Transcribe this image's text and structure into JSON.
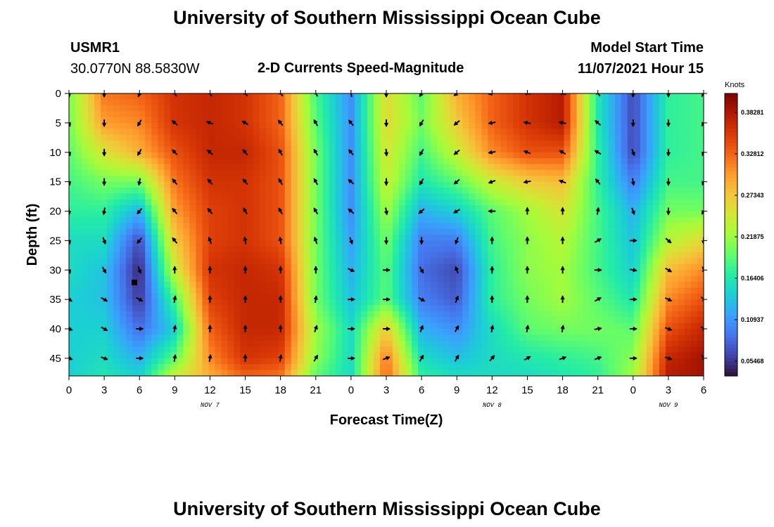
{
  "header": {
    "title": "University of Southern Mississippi Ocean Cube",
    "station_id": "USMR1",
    "coords": "30.0770N  88.5830W",
    "subtitle": "2-D Currents Speed-Magnitude",
    "model_start_label": "Model Start Time",
    "model_start_value": "11/07/2021 Hour 15"
  },
  "footer": {
    "title": "University of Southern Mississippi Ocean Cube"
  },
  "chart_data": {
    "type": "heatmap",
    "title": "2-D Currents Speed-Magnitude",
    "xlabel": "Forecast Time(Z)",
    "ylabel": "Depth (ft)",
    "x_ticks": [
      "0",
      "3",
      "6",
      "9",
      "12",
      "15",
      "18",
      "21",
      "0",
      "3",
      "6",
      "9",
      "12",
      "15",
      "18",
      "21",
      "0",
      "3",
      "6"
    ],
    "date_labels": [
      {
        "text": "NOV 7",
        "tick_index": 4
      },
      {
        "text": "NOV 8",
        "tick_index": 12
      },
      {
        "text": "NOV 9",
        "tick_index": 17
      }
    ],
    "y_ticks": [
      0,
      5,
      10,
      15,
      20,
      25,
      30,
      35,
      40,
      45
    ],
    "ylim": [
      0,
      48
    ],
    "xlim": [
      0,
      54
    ],
    "colorbar": {
      "label": "Knots",
      "ticks": [
        "0.38281",
        "0.32812",
        "0.27343",
        "0.21875",
        "0.16406",
        "0.10937",
        "0.05468"
      ],
      "vmin": 0.03,
      "vmax": 0.41,
      "colors": [
        "#30123b",
        "#4145ab",
        "#4675ed",
        "#39a2fc",
        "#1bcfd4",
        "#24eca6",
        "#61fc6c",
        "#a4fc3b",
        "#d1e834",
        "#f3c63a",
        "#fe9b2d",
        "#f36315",
        "#d93806",
        "#b11901",
        "#7a0403"
      ]
    },
    "speed_grid": {
      "depths": [
        0,
        5,
        10,
        15,
        20,
        25,
        30,
        35,
        40,
        45,
        48
      ],
      "hours": [
        0,
        3,
        6,
        9,
        12,
        15,
        18,
        21,
        24,
        27,
        30,
        33,
        36,
        39,
        42,
        45,
        48,
        51,
        54
      ],
      "values": [
        [
          0.2,
          0.32,
          0.33,
          0.36,
          0.37,
          0.36,
          0.33,
          0.18,
          0.1,
          0.26,
          0.19,
          0.29,
          0.33,
          0.36,
          0.38,
          0.16,
          0.06,
          0.17,
          0.18
        ],
        [
          0.2,
          0.3,
          0.31,
          0.36,
          0.37,
          0.36,
          0.33,
          0.19,
          0.1,
          0.26,
          0.2,
          0.27,
          0.33,
          0.36,
          0.38,
          0.16,
          0.06,
          0.17,
          0.18
        ],
        [
          0.19,
          0.25,
          0.29,
          0.34,
          0.37,
          0.37,
          0.34,
          0.2,
          0.1,
          0.25,
          0.18,
          0.24,
          0.31,
          0.34,
          0.34,
          0.17,
          0.06,
          0.17,
          0.18
        ],
        [
          0.18,
          0.2,
          0.2,
          0.32,
          0.36,
          0.36,
          0.34,
          0.2,
          0.1,
          0.24,
          0.16,
          0.19,
          0.24,
          0.27,
          0.28,
          0.17,
          0.09,
          0.18,
          0.18
        ],
        [
          0.17,
          0.17,
          0.12,
          0.3,
          0.35,
          0.36,
          0.34,
          0.2,
          0.1,
          0.22,
          0.12,
          0.14,
          0.19,
          0.22,
          0.25,
          0.18,
          0.12,
          0.2,
          0.2
        ],
        [
          0.15,
          0.15,
          0.06,
          0.27,
          0.35,
          0.36,
          0.34,
          0.2,
          0.11,
          0.2,
          0.09,
          0.09,
          0.18,
          0.21,
          0.23,
          0.18,
          0.13,
          0.23,
          0.26
        ],
        [
          0.15,
          0.13,
          0.04,
          0.24,
          0.36,
          0.37,
          0.36,
          0.2,
          0.12,
          0.19,
          0.08,
          0.06,
          0.17,
          0.21,
          0.22,
          0.18,
          0.14,
          0.28,
          0.31
        ],
        [
          0.14,
          0.13,
          0.05,
          0.18,
          0.35,
          0.37,
          0.37,
          0.2,
          0.13,
          0.19,
          0.09,
          0.07,
          0.17,
          0.2,
          0.22,
          0.19,
          0.16,
          0.31,
          0.34
        ],
        [
          0.14,
          0.14,
          0.08,
          0.14,
          0.33,
          0.37,
          0.37,
          0.22,
          0.15,
          0.27,
          0.12,
          0.1,
          0.15,
          0.19,
          0.2,
          0.2,
          0.19,
          0.34,
          0.37
        ],
        [
          0.14,
          0.15,
          0.12,
          0.19,
          0.31,
          0.36,
          0.35,
          0.21,
          0.15,
          0.32,
          0.15,
          0.13,
          0.15,
          0.16,
          0.17,
          0.18,
          0.21,
          0.37,
          0.39
        ],
        [
          0.14,
          0.16,
          0.14,
          0.24,
          0.29,
          0.33,
          0.32,
          0.19,
          0.15,
          0.33,
          0.17,
          0.15,
          0.15,
          0.15,
          0.16,
          0.17,
          0.22,
          0.38,
          0.39
        ]
      ]
    },
    "vectors": {
      "hours": [
        0,
        3,
        6,
        9,
        12,
        15,
        18,
        21,
        24,
        27,
        30,
        33,
        36,
        39,
        42,
        45,
        48,
        51,
        54
      ],
      "depths": [
        0,
        5,
        10,
        15,
        20,
        25,
        30,
        35,
        40,
        45
      ],
      "angles_deg": [
        [
          175,
          180,
          200,
          330,
          330,
          320,
          320,
          330,
          350,
          180,
          210,
          230,
          260,
          280,
          290,
          320,
          180,
          180,
          210
        ],
        [
          160,
          180,
          210,
          310,
          290,
          300,
          320,
          330,
          320,
          180,
          210,
          230,
          260,
          280,
          280,
          310,
          180,
          180,
          210
        ],
        [
          160,
          180,
          210,
          315,
          310,
          320,
          330,
          330,
          320,
          175,
          210,
          230,
          260,
          290,
          300,
          300,
          160,
          180,
          200
        ],
        [
          165,
          180,
          190,
          320,
          320,
          320,
          330,
          330,
          310,
          180,
          210,
          230,
          250,
          260,
          290,
          320,
          170,
          180,
          200
        ],
        [
          175,
          190,
          220,
          320,
          320,
          330,
          330,
          330,
          310,
          170,
          230,
          240,
          270,
          0,
          0,
          10,
          160,
          180,
          210
        ],
        [
          165,
          160,
          220,
          320,
          340,
          350,
          350,
          340,
          160,
          180,
          180,
          200,
          0,
          0,
          0,
          60,
          90,
          130,
          180
        ],
        [
          160,
          150,
          160,
          0,
          0,
          0,
          0,
          0,
          115,
          90,
          150,
          340,
          0,
          0,
          0,
          90,
          100,
          120,
          160
        ],
        [
          120,
          120,
          120,
          10,
          0,
          0,
          0,
          10,
          90,
          90,
          120,
          20,
          0,
          0,
          0,
          60,
          90,
          115,
          135
        ],
        [
          110,
          120,
          90,
          10,
          0,
          0,
          0,
          20,
          90,
          90,
          20,
          30,
          10,
          10,
          10,
          80,
          90,
          110,
          130
        ],
        [
          110,
          110,
          90,
          10,
          10,
          0,
          10,
          30,
          90,
          70,
          30,
          30,
          40,
          60,
          70,
          70,
          90,
          110,
          150
        ]
      ]
    }
  }
}
